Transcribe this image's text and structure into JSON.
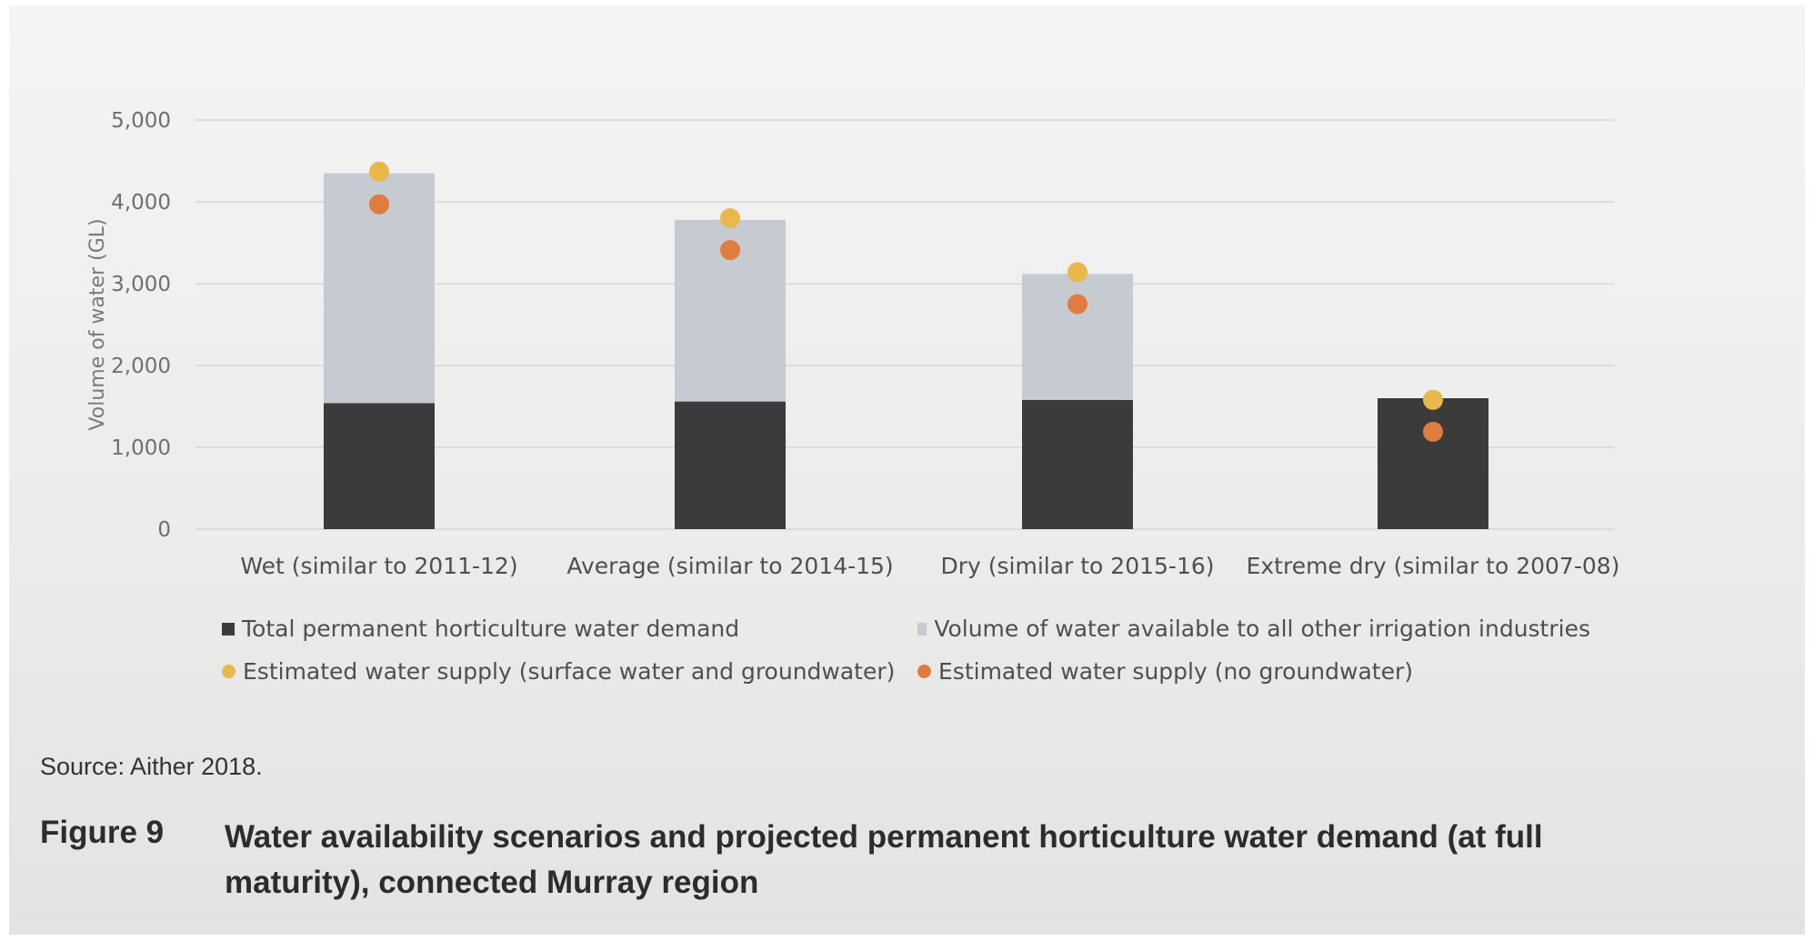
{
  "chart_data": {
    "type": "bar",
    "stacked": true,
    "categories": [
      "Wet (similar to 2011-12)",
      "Average (similar to 2014-15)",
      "Dry (similar to 2015-16)",
      "Extreme dry (similar to 2007-08)"
    ],
    "series": [
      {
        "name": "Total permanent horticulture water demand",
        "kind": "bar",
        "color": "#3b3b3b",
        "values": [
          1540,
          1560,
          1580,
          1600
        ]
      },
      {
        "name": "Volume of water available to all other irrigation industries",
        "kind": "bar",
        "color": "#c5cbd0",
        "values": [
          2810,
          2220,
          1540,
          0
        ]
      },
      {
        "name": "Estimated water supply (surface water and groundwater)",
        "kind": "marker",
        "color": "#e8b94a",
        "values": [
          4370,
          3800,
          3140,
          1580
        ]
      },
      {
        "name": "Estimated water supply (no groundwater)",
        "kind": "marker",
        "color": "#e07c3e",
        "values": [
          3970,
          3410,
          2750,
          1190
        ]
      }
    ],
    "ylabel": "Volume of water (GL)",
    "ylim": [
      0,
      5000
    ],
    "yticks": [
      "0",
      "1,000",
      "2,000",
      "3,000",
      "4,000",
      "5,000"
    ],
    "grid": true,
    "legend_position": "bottom"
  },
  "source": "Source: Aither 2018.",
  "figure_label": "Figure 9",
  "figure_title": "Water availability scenarios and projected permanent horticulture water demand (at full maturity), connected Murray region"
}
